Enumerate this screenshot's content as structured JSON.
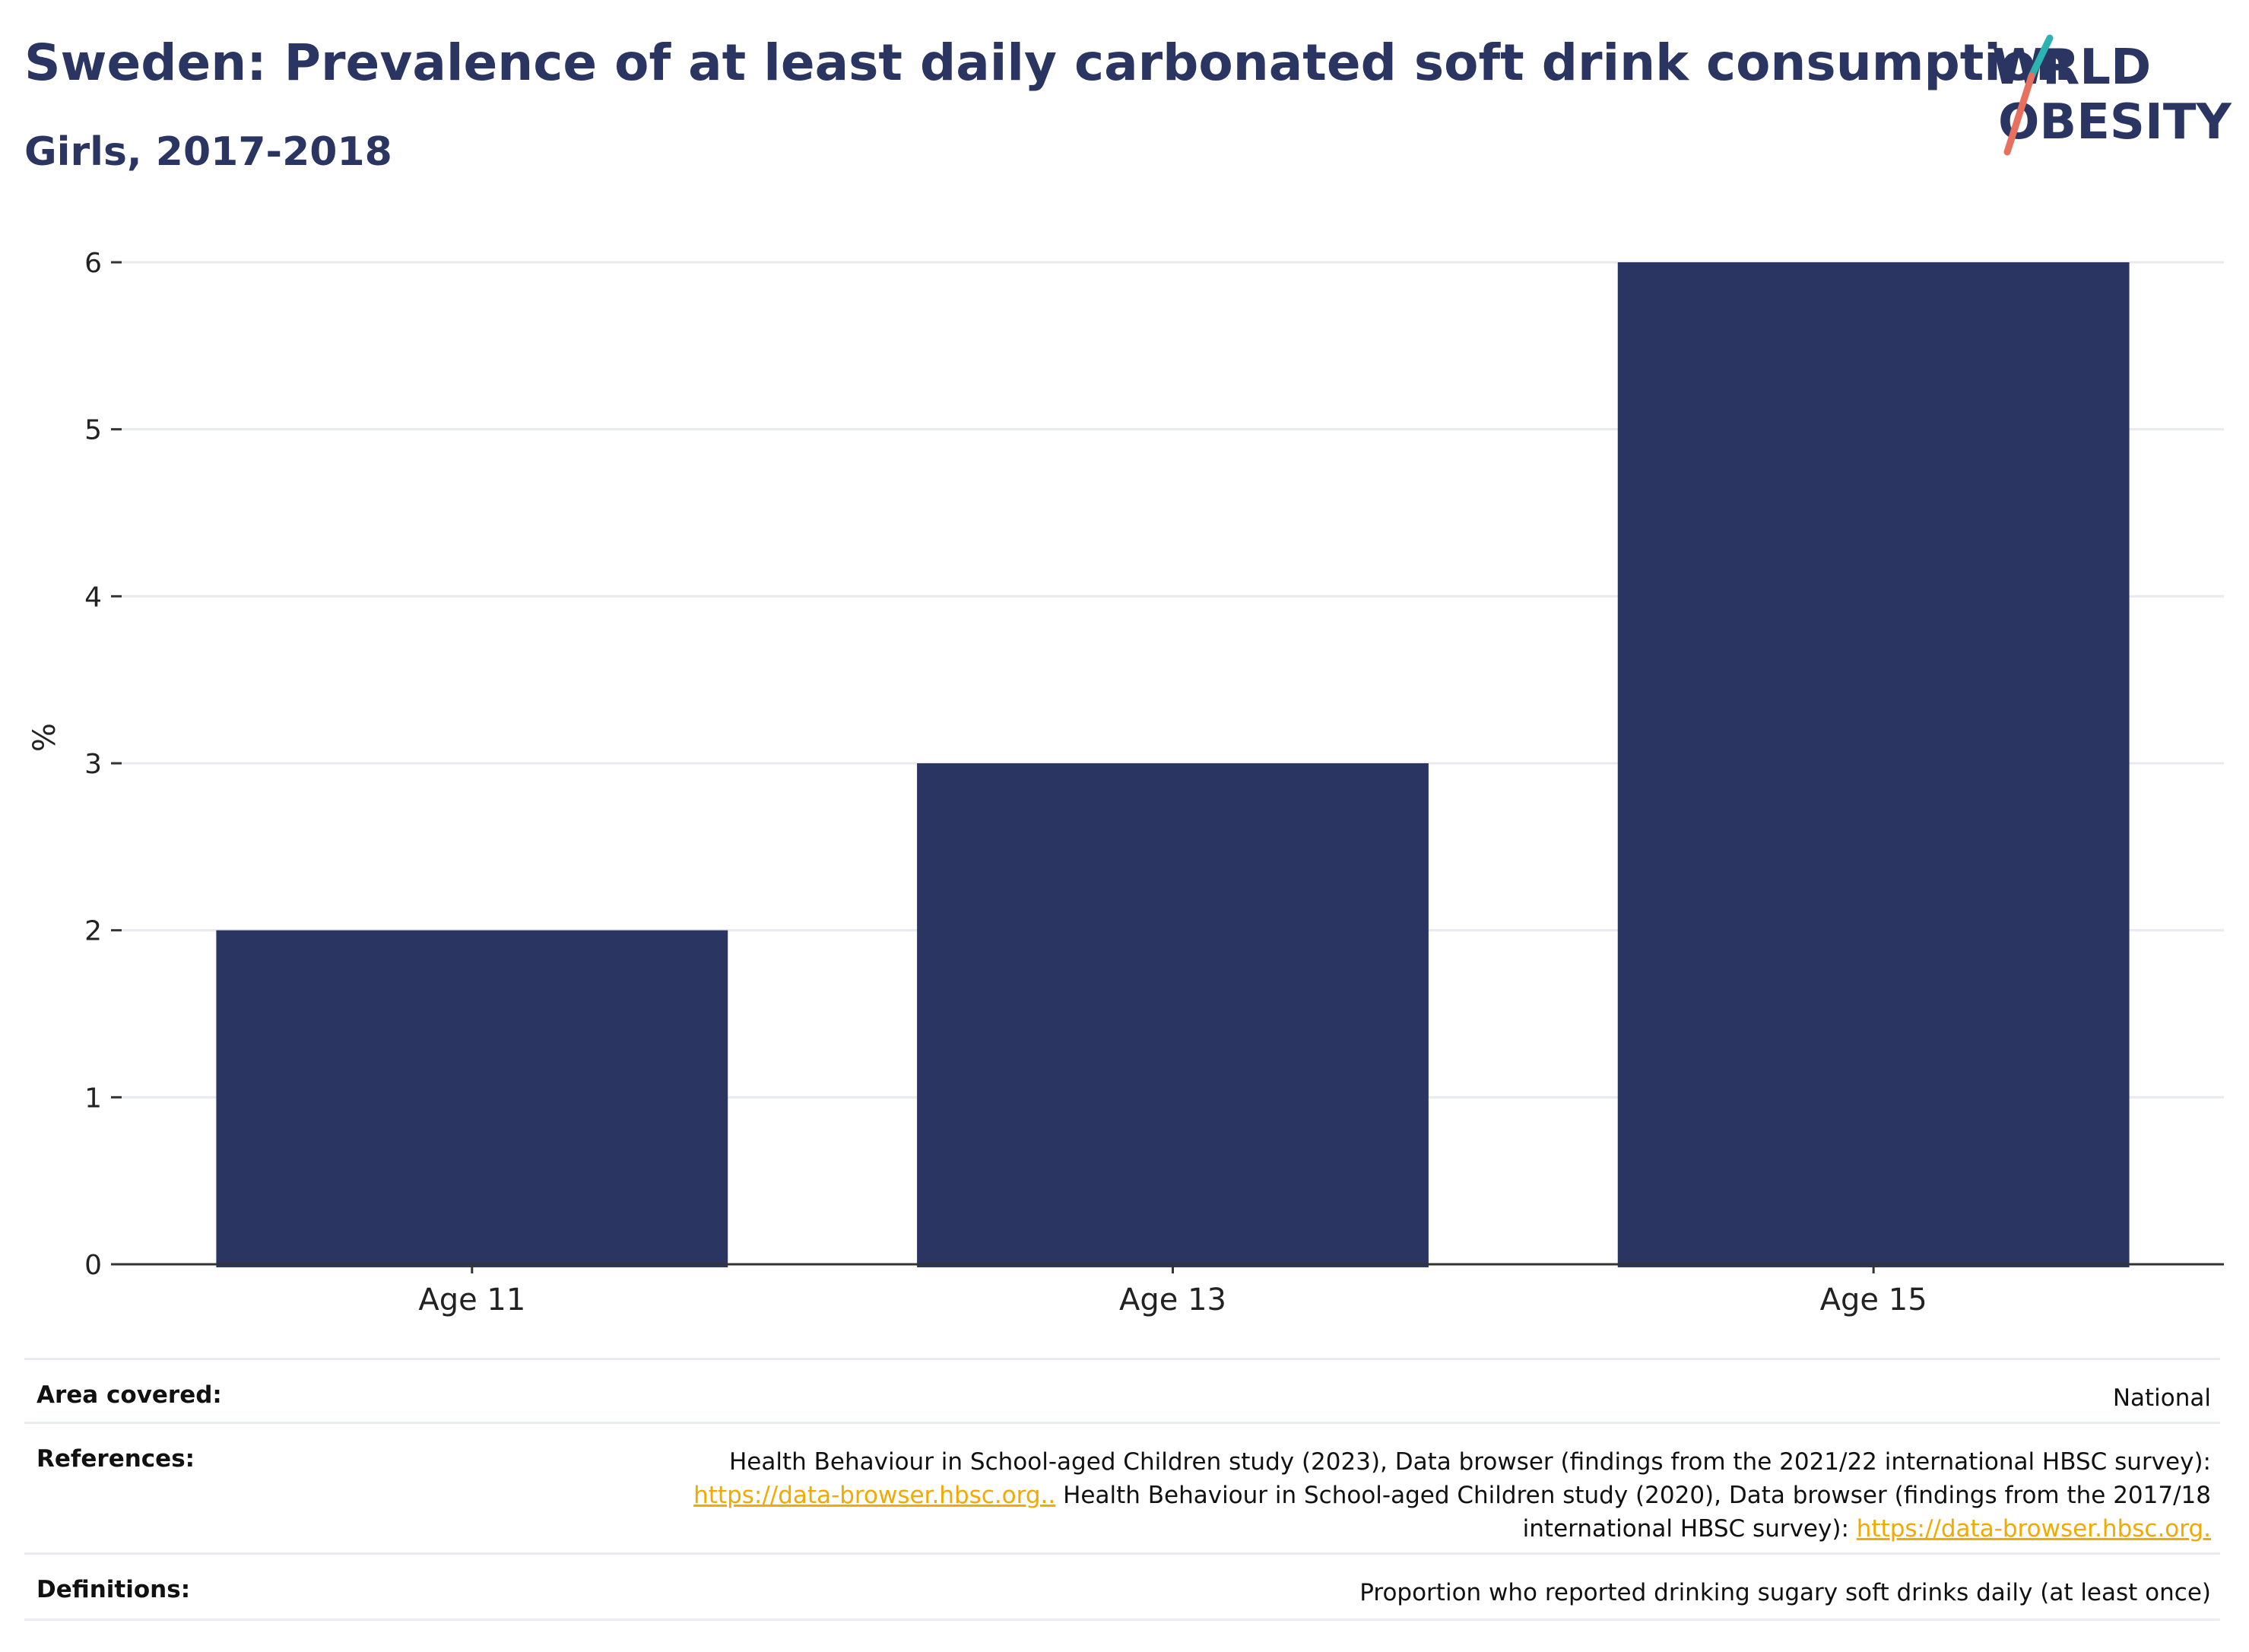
{
  "header": {
    "title": "Sweden: Prevalence of at least daily carbonated soft drink consumption",
    "subtitle": "Girls, 2017-2018",
    "logo_text": "WORLD OBESITY"
  },
  "colors": {
    "bar": "#2a3561",
    "accent_teal": "#2ab3b1",
    "accent_coral": "#e8705f",
    "link": "#f2a900"
  },
  "chart_data": {
    "type": "bar",
    "categories": [
      "Age 11",
      "Age 13",
      "Age 15"
    ],
    "values": [
      2,
      3,
      6
    ],
    "ylabel": "%",
    "ylim": [
      0,
      6
    ],
    "yticks": [
      "0",
      "1",
      "2",
      "3",
      "4",
      "5",
      "6"
    ],
    "grid": true,
    "legend": "none"
  },
  "meta": {
    "area_label": "Area covered:",
    "area_value": "National",
    "references_label": "References:",
    "ref_text_1": "Health Behaviour in School-aged Children study (2023), Data browser (findings from the 2021/22 international HBSC survey):",
    "ref_link_1": "https://data-browser.hbsc.org..",
    "ref_text_2": " Health Behaviour in School-aged Children study (2020), Data browser (findings from the 2017/18",
    "ref_text_3": "international HBSC survey): ",
    "ref_link_2": "https://data-browser.hbsc.org.",
    "definitions_label": "Definitions:",
    "definitions_value": "Proportion who reported drinking sugary soft drinks daily (at least once)"
  }
}
